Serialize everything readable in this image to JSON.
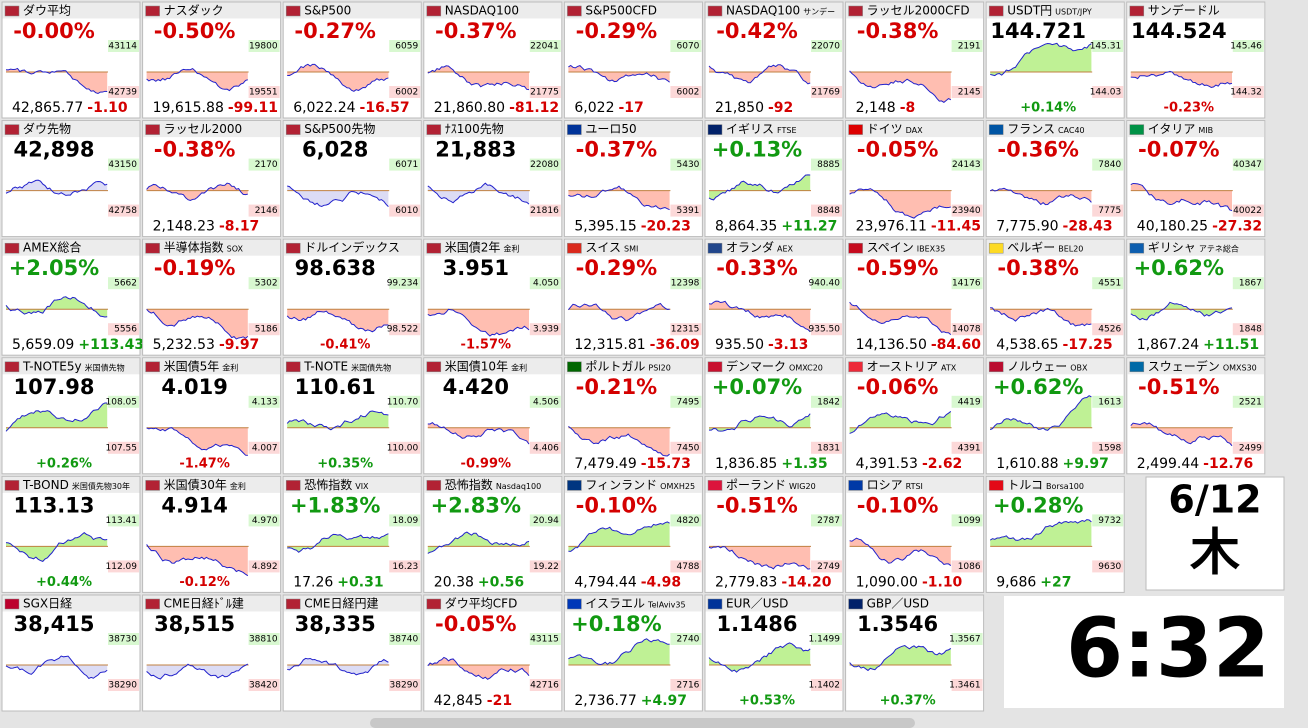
{
  "tiles": [
    {
      "name": "ダウ平均",
      "head": "-0.00%",
      "value": "42,865.77",
      "change": "-1.10",
      "high": "43114",
      "low": "42739",
      "flag": "#b22234",
      "color": "red"
    },
    {
      "name": "ナスダック",
      "head": "-0.50%",
      "value": "19,615.88",
      "change": "-99.11",
      "high": "19800",
      "low": "19551",
      "flag": "#b22234",
      "color": "red"
    },
    {
      "name": "S&P500",
      "head": "-0.27%",
      "value": "6,022.24",
      "change": "-16.57",
      "high": "6059",
      "low": "6002",
      "flag": "#b22234",
      "color": "red"
    },
    {
      "name": "NASDAQ100",
      "head": "-0.37%",
      "value": "21,860.80",
      "change": "-81.12",
      "high": "22041",
      "low": "21775",
      "flag": "#b22234",
      "color": "red"
    },
    {
      "name": "S&P500CFD",
      "head": "-0.29%",
      "value": "6,022",
      "change": "-17",
      "high": "6070",
      "low": "6002",
      "flag": "#b22234",
      "color": "red"
    },
    {
      "name": "NASDAQ100",
      "sub": "サンデー",
      "head": "-0.42%",
      "value": "21,850",
      "change": "-92",
      "high": "22070",
      "low": "21769",
      "flag": "#b22234",
      "color": "red"
    },
    {
      "name": "ラッセル2000CFD",
      "head": "-0.38%",
      "value": "2,148",
      "change": "-8",
      "high": "2191",
      "low": "2145",
      "flag": "#b22234",
      "color": "red"
    },
    {
      "name": "USDT円",
      "sub": "USDT/JPY",
      "head": "144.721",
      "change": "+0.14%",
      "high": "145.31",
      "low": "144.03",
      "flag": "#b22234",
      "color": "green"
    },
    {
      "name": "サンデードル",
      "head": "144.524",
      "change": "-0.23%",
      "high": "145.46",
      "low": "144.32",
      "flag": "#b22234",
      "color": "red"
    },
    {
      "name": "ダウ先物",
      "head": "42,898",
      "high": "43150",
      "low": "42758",
      "flag": "#b22234",
      "color": "blue"
    },
    {
      "name": "ラッセル2000",
      "head": "-0.38%",
      "value": "2,148.23",
      "change": "-8.17",
      "high": "2170",
      "low": "2146",
      "flag": "#b22234",
      "color": "red"
    },
    {
      "name": "S&P500先物",
      "head": "6,028",
      "high": "6071",
      "low": "6010",
      "flag": "#b22234",
      "color": "blue"
    },
    {
      "name": "ﾅｽ100先物",
      "head": "21,883",
      "high": "22080",
      "low": "21816",
      "flag": "#b22234",
      "color": "blue"
    },
    {
      "name": "ユーロ50",
      "head": "-0.37%",
      "value": "5,395.15",
      "change": "-20.23",
      "high": "5430",
      "low": "5391",
      "flag": "#003399",
      "color": "red"
    },
    {
      "name": "イギリス",
      "sub": "FTSE",
      "head": "+0.13%",
      "value": "8,864.35",
      "change": "+11.27",
      "high": "8885",
      "low": "8848",
      "flag": "#012169",
      "color": "green"
    },
    {
      "name": "ドイツ",
      "sub": "DAX",
      "head": "-0.05%",
      "value": "23,976.11",
      "change": "-11.45",
      "high": "24143",
      "low": "23940",
      "flag": "#dd0000",
      "color": "red"
    },
    {
      "name": "フランス",
      "sub": "CAC40",
      "head": "-0.36%",
      "value": "7,775.90",
      "change": "-28.43",
      "high": "7840",
      "low": "7775",
      "flag": "#0055a4",
      "color": "red"
    },
    {
      "name": "イタリア",
      "sub": "MIB",
      "head": "-0.07%",
      "value": "40,180.25",
      "change": "-27.32",
      "high": "40347",
      "low": "40022",
      "flag": "#009246",
      "color": "red"
    },
    {
      "name": "AMEX総合",
      "head": "+2.05%",
      "value": "5,659.09",
      "change": "+113.43",
      "high": "5662",
      "low": "5556",
      "flag": "#b22234",
      "color": "green"
    },
    {
      "name": "半導体指数",
      "sub": "SOX",
      "head": "-0.19%",
      "value": "5,232.53",
      "change": "-9.97",
      "high": "5302",
      "low": "5186",
      "flag": "#b22234",
      "color": "red"
    },
    {
      "name": "ドルインデックス",
      "head": "98.638",
      "change": "-0.41%",
      "high": "99.234",
      "low": "98.522",
      "flag": "#b22234",
      "color": "red"
    },
    {
      "name": "米国債2年",
      "sub": "金利",
      "head": "3.951",
      "change": "-1.57%",
      "high": "4.050",
      "low": "3.939",
      "flag": "#b22234",
      "color": "red"
    },
    {
      "name": "スイス",
      "sub": "SMI",
      "head": "-0.29%",
      "value": "12,315.81",
      "change": "-36.09",
      "high": "12398",
      "low": "12315",
      "flag": "#da291c",
      "color": "red"
    },
    {
      "name": "オランダ",
      "sub": "AEX",
      "head": "-0.33%",
      "value": "935.50",
      "change": "-3.13",
      "high": "940.40",
      "low": "935.50",
      "flag": "#21468b",
      "color": "red"
    },
    {
      "name": "スペイン",
      "sub": "IBEX35",
      "head": "-0.59%",
      "value": "14,136.50",
      "change": "-84.60",
      "high": "14176",
      "low": "14078",
      "flag": "#c60b1e",
      "color": "red"
    },
    {
      "name": "ベルギー",
      "sub": "BEL20",
      "head": "-0.38%",
      "value": "4,538.65",
      "change": "-17.25",
      "high": "4551",
      "low": "4526",
      "flag": "#fdda24",
      "color": "red"
    },
    {
      "name": "ギリシャ",
      "sub": "アテネ総合",
      "head": "+0.62%",
      "value": "1,867.24",
      "change": "+11.51",
      "high": "1867",
      "low": "1848",
      "flag": "#0d5eaf",
      "color": "green"
    },
    {
      "name": "T-NOTE5y",
      "sub": "米国債先物",
      "head": "107.98",
      "change": "+0.26%",
      "high": "108.05",
      "low": "107.55",
      "flag": "#b22234",
      "color": "green"
    },
    {
      "name": "米国債5年",
      "sub": "金利",
      "head": "4.019",
      "change": "-1.47%",
      "high": "4.133",
      "low": "4.007",
      "flag": "#b22234",
      "color": "red"
    },
    {
      "name": "T-NOTE",
      "sub": "米国債先物",
      "head": "110.61",
      "change": "+0.35%",
      "high": "110.70",
      "low": "110.00",
      "flag": "#b22234",
      "color": "green"
    },
    {
      "name": "米国債10年",
      "sub": "金利",
      "head": "4.420",
      "change": "-0.99%",
      "high": "4.506",
      "low": "4.406",
      "flag": "#b22234",
      "color": "red"
    },
    {
      "name": "ポルトガル",
      "sub": "PSI20",
      "head": "-0.21%",
      "value": "7,479.49",
      "change": "-15.73",
      "high": "7495",
      "low": "7450",
      "flag": "#006600",
      "color": "red"
    },
    {
      "name": "デンマーク",
      "sub": "OMXC20",
      "head": "+0.07%",
      "value": "1,836.85",
      "change": "+1.35",
      "high": "1842",
      "low": "1831",
      "flag": "#c8102e",
      "color": "green"
    },
    {
      "name": "オーストリア",
      "sub": "ATX",
      "head": "-0.06%",
      "value": "4,391.53",
      "change": "-2.62",
      "high": "4419",
      "low": "4391",
      "flag": "#ed2939",
      "color": "green"
    },
    {
      "name": "ノルウェー",
      "sub": "OBX",
      "head": "+0.62%",
      "value": "1,610.88",
      "change": "+9.97",
      "high": "1613",
      "low": "1598",
      "flag": "#ba0c2f",
      "color": "green"
    },
    {
      "name": "スウェーデン",
      "sub": "OMXS30",
      "head": "-0.51%",
      "value": "2,499.44",
      "change": "-12.76",
      "high": "2521",
      "low": "2499",
      "flag": "#006aa7",
      "color": "red"
    },
    {
      "name": "T-BOND",
      "sub": "米国債先物30年",
      "head": "113.13",
      "change": "+0.44%",
      "high": "113.41",
      "low": "112.09",
      "flag": "#b22234",
      "color": "green"
    },
    {
      "name": "米国債30年",
      "sub": "金利",
      "head": "4.914",
      "change": "-0.12%",
      "high": "4.970",
      "low": "4.892",
      "flag": "#b22234",
      "color": "red"
    },
    {
      "name": "恐怖指数",
      "sub": "VIX",
      "head": "+1.83%",
      "value": "17.26",
      "change": "+0.31",
      "high": "18.09",
      "low": "16.23",
      "flag": "#b22234",
      "color": "green"
    },
    {
      "name": "恐怖指数",
      "sub": "Nasdaq100",
      "head": "+2.83%",
      "value": "20.38",
      "change": "+0.56",
      "high": "20.94",
      "low": "19.22",
      "flag": "#b22234",
      "color": "green"
    },
    {
      "name": "フィンランド",
      "sub": "OMXH25",
      "head": "-0.10%",
      "value": "4,794.44",
      "change": "-4.98",
      "high": "4820",
      "low": "4788",
      "flag": "#003580",
      "color": "green"
    },
    {
      "name": "ポーランド",
      "sub": "WIG20",
      "head": "-0.51%",
      "value": "2,779.83",
      "change": "-14.20",
      "high": "2787",
      "low": "2749",
      "flag": "#dc143c",
      "color": "red"
    },
    {
      "name": "ロシア",
      "sub": "RTSI",
      "head": "-0.10%",
      "value": "1,090.00",
      "change": "-1.10",
      "high": "1099",
      "low": "1086",
      "flag": "#0039a6",
      "color": "red"
    },
    {
      "name": "トルコ",
      "sub": "Borsa100",
      "head": "+0.28%",
      "value": "9,686",
      "change": "+27",
      "high": "9732",
      "low": "9630",
      "flag": "#e30a17",
      "color": "green"
    },
    {
      "name": "SGX日経",
      "head": "38,415",
      "high": "38730",
      "low": "38290",
      "flag": "#bc002d",
      "color": "blue"
    },
    {
      "name": "CME日経ﾄﾞﾙ建",
      "head": "38,515",
      "high": "38810",
      "low": "38420",
      "flag": "#b22234",
      "color": "blue"
    },
    {
      "name": "CME日経円建",
      "head": "38,335",
      "high": "38740",
      "low": "38290",
      "flag": "#b22234",
      "color": "blue"
    },
    {
      "name": "ダウ平均CFD",
      "head": "-0.05%",
      "value": "42,845",
      "change": "-21",
      "high": "43115",
      "low": "42716",
      "flag": "#b22234",
      "color": "red"
    },
    {
      "name": "イスラエル",
      "sub": "TelAviv35",
      "head": "+0.18%",
      "value": "2,736.77",
      "change": "+4.97",
      "high": "2740",
      "low": "2716",
      "flag": "#0038b8",
      "color": "green"
    },
    {
      "name": "EUR／USD",
      "head": "1.1486",
      "change": "+0.53%",
      "high": "1.1499",
      "low": "1.1402",
      "flag": "#003399",
      "color": "green"
    },
    {
      "name": "GBP／USD",
      "head": "1.3546",
      "change": "+0.37%",
      "high": "1.3567",
      "low": "1.3461",
      "flag": "#012169",
      "color": "green"
    }
  ],
  "date": {
    "day": "6/12",
    "weekday": "木"
  },
  "time": "6:32"
}
